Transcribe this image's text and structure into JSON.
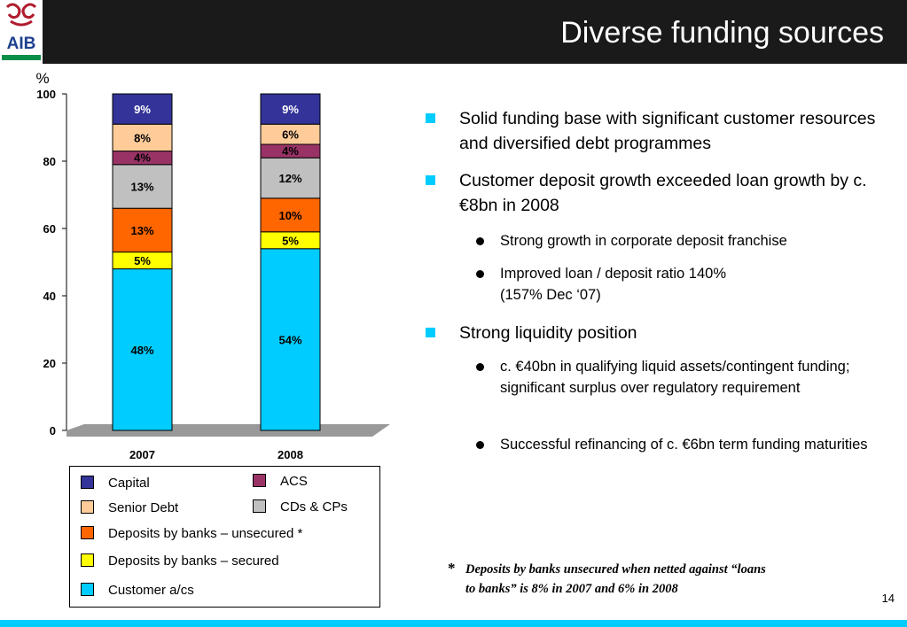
{
  "header": {
    "title": "Diverse funding sources",
    "logo_text": "AIB"
  },
  "colors": {
    "header_bg": "#1a1a1a",
    "accent": "#00ccff",
    "capital": "#333399",
    "senior_debt": "#ffcc99",
    "acs": "#993366",
    "cds_cps": "#c0c0c0",
    "deposits_unsecured": "#ff6600",
    "deposits_secured": "#ffff00",
    "customer_ac": "#00ccff"
  },
  "chart_data": {
    "type": "bar",
    "stacked": true,
    "ylabel": "%",
    "ylim": [
      0,
      100
    ],
    "yticks": [
      0,
      20,
      40,
      60,
      80,
      100
    ],
    "categories": [
      "2007",
      "2008"
    ],
    "series": [
      {
        "name": "Customer a/cs",
        "values": [
          48,
          54
        ],
        "labels": [
          "48%",
          "54%"
        ],
        "color": "#00ccff"
      },
      {
        "name": "Deposits by banks – secured",
        "values": [
          5,
          5
        ],
        "labels": [
          "5%",
          "5%"
        ],
        "color": "#ffff00"
      },
      {
        "name": "Deposits by banks – unsecured *",
        "values": [
          13,
          10
        ],
        "labels": [
          "13%",
          "10%"
        ],
        "color": "#ff6600"
      },
      {
        "name": "CDs & CPs",
        "values": [
          13,
          12
        ],
        "labels": [
          "13%",
          "12%"
        ],
        "color": "#c0c0c0"
      },
      {
        "name": "ACS",
        "values": [
          4,
          4
        ],
        "labels": [
          "4%",
          "4%"
        ],
        "color": "#993366"
      },
      {
        "name": "Senior Debt",
        "values": [
          8,
          6
        ],
        "labels": [
          "8%",
          "6%"
        ],
        "color": "#ffcc99"
      },
      {
        "name": "Capital",
        "values": [
          9,
          9
        ],
        "labels": [
          "9%",
          "9%"
        ],
        "color": "#333399"
      }
    ],
    "legend": [
      {
        "label": "Capital",
        "color": "#333399"
      },
      {
        "label": "ACS",
        "color": "#993366"
      },
      {
        "label": "Senior Debt",
        "color": "#ffcc99"
      },
      {
        "label": "CDs & CPs",
        "color": "#c0c0c0"
      },
      {
        "label": "Deposits by banks – unsecured *",
        "color": "#ff6600"
      },
      {
        "label": "Deposits by banks – secured",
        "color": "#ffff00"
      },
      {
        "label": "Customer a/cs",
        "color": "#00ccff"
      }
    ],
    "legend_placement": "bottom"
  },
  "bullets": [
    {
      "level": 1,
      "text": "Solid funding base with significant customer resources and diversified debt programmes"
    },
    {
      "level": 1,
      "text": "Customer deposit growth exceeded loan growth by c. €8bn in 2008"
    },
    {
      "level": 2,
      "text": "Strong growth in corporate deposit franchise"
    },
    {
      "level": 2,
      "text": "Improved loan / deposit ratio 140%",
      "text2": "(157% Dec ‘07)"
    },
    {
      "level": 1,
      "text": "Strong liquidity position"
    },
    {
      "level": 2,
      "text": "c. €40bn in qualifying liquid assets/contingent funding; significant surplus over regulatory requirement"
    },
    {
      "level": 2,
      "text": "Successful refinancing of c. €6bn term funding maturities"
    }
  ],
  "footnote": {
    "marker": "*",
    "line1": "Deposits by banks unsecured when netted against “loans",
    "line2": "to banks” is 8% in 2007 and 6% in  2008"
  },
  "page_number": "14"
}
